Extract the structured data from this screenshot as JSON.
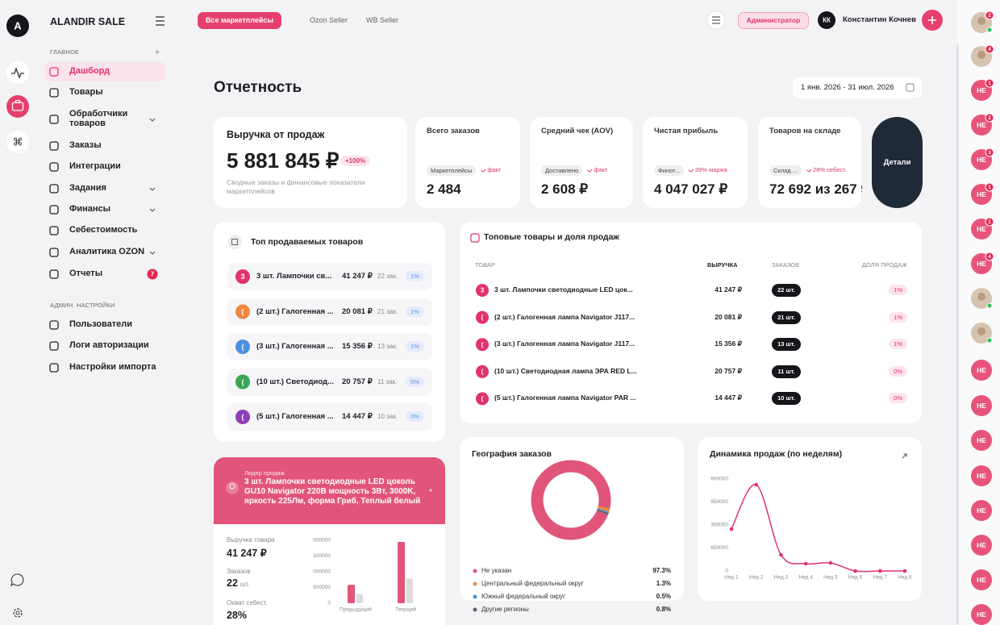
{
  "app": {
    "logo": "A",
    "name": "ALANDIR SALE"
  },
  "nav": {
    "sections": [
      {
        "title": "ГЛАВНОЕ",
        "items": [
          {
            "label": "Дашборд",
            "active": true
          },
          {
            "label": "Товары"
          },
          {
            "label": "Обработчики товаров",
            "expandable": true
          },
          {
            "label": "Заказы"
          },
          {
            "label": "Интеграции"
          },
          {
            "label": "Задания",
            "expandable": true
          },
          {
            "label": "Финансы",
            "expandable": true
          },
          {
            "label": "Себестоимость"
          },
          {
            "label": "Аналитика OZON",
            "expandable": true
          },
          {
            "label": "Отчеты",
            "badge": 7
          }
        ]
      },
      {
        "title": "АДМИН. НАСТРОЙКИ",
        "items": [
          {
            "label": "Пользователи"
          },
          {
            "label": "Логи авторизации"
          },
          {
            "label": "Настройки импорта"
          }
        ]
      }
    ]
  },
  "tabs": [
    "Все маркетплейсы",
    "Ozon Seller",
    "WB Seller"
  ],
  "user": {
    "role": "Администратор",
    "initials": "КК",
    "name": "Константин Кочнев"
  },
  "page": {
    "title": "Отчетность",
    "date_range": "1 янв. 2026 - 31 июл. 2026"
  },
  "revenue_card": {
    "title": "Выручка от продаж",
    "value": "5 881 845 ₽",
    "change": "+100%",
    "description": "Сводные заказы и финансовые показатели маркетплейсов"
  },
  "kpis": [
    {
      "title": "Всего заказов",
      "tag": "Маркетплейсы",
      "trend": "факт",
      "value": "2 484"
    },
    {
      "title": "Средний чек (AOV)",
      "tag": "Доставлено",
      "trend": "факт",
      "value": "2 608 ₽"
    },
    {
      "title": "Чистая прибыль",
      "tag": "Финот...",
      "trend": "39% маржа",
      "value": "4 047 027 ₽"
    },
    {
      "title": "Товаров на складе",
      "tag": "Склад ...",
      "trend": "28% себест.",
      "value": "72 692 из 267 9"
    }
  ],
  "details_button": "Детали",
  "top_products": {
    "title": "Топ продаваемых товаров",
    "rows": [
      {
        "badge": "3",
        "color": "#e0336e",
        "name": "3 шт. Лампочки св...",
        "revenue": "41 247 ₽",
        "orders": "22 зак.",
        "share": "1%"
      },
      {
        "badge": "(",
        "color": "#f0883e",
        "name": "(2 шт.) Галогенная ...",
        "revenue": "20 081 ₽",
        "orders": "21 зак.",
        "share": "1%"
      },
      {
        "badge": "(",
        "color": "#4a90e2",
        "name": "(3 шт.) Галогенная ...",
        "revenue": "15 356 ₽",
        "orders": "13 зак.",
        "share": "1%"
      },
      {
        "badge": "(",
        "color": "#3aa655",
        "name": "(10 шт.) Светодиод...",
        "revenue": "20 757 ₽",
        "orders": "11 зак.",
        "share": "0%"
      },
      {
        "badge": "(",
        "color": "#8e3fb5",
        "name": "(5 шт.) Галогенная ...",
        "revenue": "14 447 ₽",
        "orders": "10 зак.",
        "share": "0%"
      }
    ]
  },
  "top_goods": {
    "title": "Топовые товары и доля продаж",
    "columns": [
      "ТОВАР",
      "ВЫРУЧКА",
      "ЗАКАЗОВ",
      "ДОЛЯ ПРОДАЖ"
    ],
    "rows": [
      {
        "badge": "3",
        "name": "3 шт. Лампочки светодиодные LED цок...",
        "revenue": "41 247 ₽",
        "orders": "22 шт.",
        "share": "1%"
      },
      {
        "badge": "(",
        "name": "(2 шт.) Галогенная лампа Navigator J117...",
        "revenue": "20 081 ₽",
        "orders": "21 шт.",
        "share": "1%"
      },
      {
        "badge": "(",
        "name": "(3 шт.) Галогенная лампа Navigator J117...",
        "revenue": "15 356 ₽",
        "orders": "13 шт.",
        "share": "1%"
      },
      {
        "badge": "(",
        "name": "(10 шт.) Светодиодная лампа ЭРА RED L...",
        "revenue": "20 757 ₽",
        "orders": "11 шт.",
        "share": "0%"
      },
      {
        "badge": "(",
        "name": "(5 шт.) Галогенная лампа Navigator PAR ...",
        "revenue": "14 447 ₽",
        "orders": "10 шт.",
        "share": "0%"
      }
    ]
  },
  "leader": {
    "label": "Лидер продаж",
    "title": "3 шт. Лампочки светодиодные LED цоколь GU10 Navigator 220В мощность 3Вт, 3000K, яркость 225Лм, форма Гриб, Теплый белый",
    "revenue_label": "Выручка товара",
    "revenue": "41 247 ₽",
    "orders_label": "Заказов",
    "orders_value": "22",
    "orders_unit": "шт.",
    "coverage_label": "Охват себест.",
    "coverage": "28%",
    "chart": {
      "type": "bar",
      "categories": [
        "Предыдущий",
        "Текущий"
      ],
      "series": [
        {
          "color": "#e2557a",
          "values": [
            585000,
            1950000
          ]
        },
        {
          "color": "#dcdcdf",
          "values": [
            290000,
            780000
          ]
        }
      ],
      "ylim": [
        0,
        2000000
      ],
      "yticks": [
        {
          "value": 2000000,
          "label": "000000"
        },
        {
          "value": 1500000,
          "label": "500000"
        },
        {
          "value": 1000000,
          "label": "000000"
        },
        {
          "value": 500000,
          "label": "500000"
        },
        0
      ]
    }
  },
  "geography": {
    "title": "География заказов",
    "type": "donut",
    "regions": [
      {
        "name": "Не указан",
        "color": "#e2557a",
        "value": 97.3,
        "value_label": "97.3%"
      },
      {
        "name": "Центральный федеральный округ",
        "color": "#f0883e",
        "value": 1.3,
        "value_label": "1.3%"
      },
      {
        "name": "Южный федеральный округ",
        "color": "#4a90e2",
        "value": 0.5,
        "value_label": "0.5%"
      },
      {
        "name": "Другие регионы",
        "color": "#5f6470",
        "value": 0.8,
        "value_label": "0.8%"
      }
    ]
  },
  "sales_dynamics": {
    "title": "Динамика продаж (по неделям)",
    "type": "line",
    "categories": [
      "Нед 1",
      "Нед 2",
      "Нед 3",
      "Нед 4",
      "Нед 5",
      "Нед 6",
      "Нед 7",
      "Нед 8"
    ],
    "values": [
      1186000,
      2440000,
      456000,
      205000,
      228000,
      0,
      0,
      0
    ],
    "color": "#e0336e",
    "ylim": [
      0,
      2600000
    ],
    "yticks": [
      0,
      {
        "value": 650000,
        "label": "650000"
      },
      {
        "value": 1300000,
        "label": "300000"
      },
      {
        "value": 1950000,
        "label": "950000"
      },
      {
        "value": 2600000,
        "label": "600000"
      }
    ]
  },
  "contacts": [
    {
      "badge": 2,
      "online": true
    },
    {
      "badge": 4
    },
    {
      "initials": "НЕ",
      "badge": 1
    },
    {
      "initials": "НЕ",
      "badge": 2
    },
    {
      "initials": "НЕ",
      "badge": 3
    },
    {
      "initials": "НЕ",
      "badge": 1
    },
    {
      "initials": "НЕ",
      "badge": 1
    },
    {
      "initials": "НЕ",
      "badge": 4
    },
    {
      "online": true
    },
    {
      "online": true
    },
    {
      "initials": "НЕ"
    },
    {
      "initials": "НЕ"
    },
    {
      "initials": "НЕ"
    },
    {
      "initials": "НЕ"
    },
    {
      "initials": "НЕ"
    },
    {
      "initials": "НЕ"
    },
    {
      "initials": "НЕ"
    },
    {
      "initials": "НЕ"
    }
  ]
}
